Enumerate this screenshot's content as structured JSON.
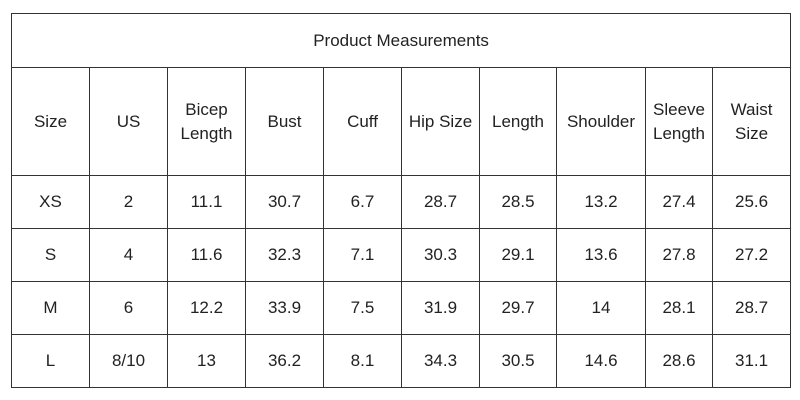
{
  "table": {
    "title": "Product Measurements",
    "header": [
      "Size",
      "US",
      "Bicep Length",
      "Bust",
      "Cuff",
      "Hip Size",
      "Length",
      "Shoulder",
      "Sleeve Length",
      "Waist Size"
    ],
    "rows": [
      [
        "XS",
        "2",
        "11.1",
        "30.7",
        "6.7",
        "28.7",
        "28.5",
        "13.2",
        "27.4",
        "25.6"
      ],
      [
        "S",
        "4",
        "11.6",
        "32.3",
        "7.1",
        "30.3",
        "29.1",
        "13.6",
        "27.8",
        "27.2"
      ],
      [
        "M",
        "6",
        "12.2",
        "33.9",
        "7.5",
        "31.9",
        "29.7",
        "14",
        "28.1",
        "28.7"
      ],
      [
        "L",
        "8/10",
        "13",
        "36.2",
        "8.1",
        "34.3",
        "30.5",
        "14.6",
        "28.6",
        "31.1"
      ]
    ]
  }
}
